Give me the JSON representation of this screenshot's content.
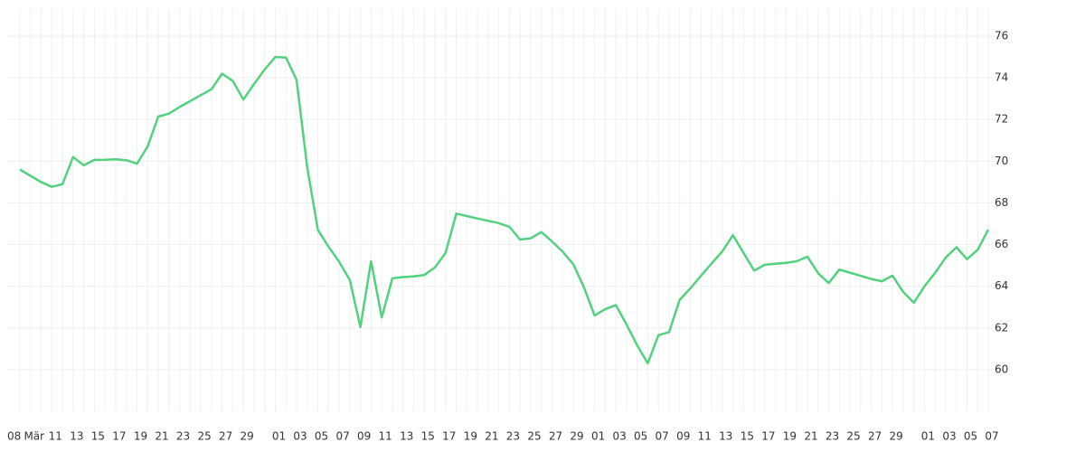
{
  "chart_data": {
    "type": "line",
    "categories": [
      "08",
      "Mär",
      null,
      "11",
      null,
      "13",
      null,
      "15",
      null,
      "17",
      null,
      "19",
      null,
      "21",
      null,
      "23",
      null,
      "25",
      null,
      "27",
      null,
      "29",
      null,
      null,
      "01",
      null,
      "03",
      null,
      "05",
      null,
      "07",
      null,
      "09",
      null,
      "11",
      null,
      "13",
      null,
      "15",
      null,
      "17",
      null,
      "19",
      null,
      "21",
      null,
      "23",
      null,
      "25",
      null,
      "27",
      null,
      "29",
      null,
      "01",
      null,
      "03",
      null,
      "05",
      null,
      "07",
      null,
      "09",
      null,
      "11",
      null,
      "13",
      null,
      "15",
      null,
      "17",
      null,
      "19",
      null,
      "21",
      null,
      "23",
      null,
      "25",
      null,
      "27",
      null,
      "29",
      null,
      null,
      "01",
      null,
      "03",
      null,
      "05",
      null,
      "07"
    ],
    "series": [
      {
        "color": "#52d17e",
        "values": [
          69.6,
          69.3,
          69.0,
          68.77,
          68.9,
          70.2,
          69.8,
          70.06,
          70.07,
          70.09,
          70.05,
          69.88,
          70.7,
          72.14,
          72.28,
          72.6,
          72.88,
          73.17,
          73.45,
          74.2,
          73.85,
          72.96,
          73.7,
          74.4,
          75.0,
          74.97,
          73.9,
          69.7,
          66.7,
          65.9,
          65.17,
          64.3,
          62.04,
          65.2,
          62.5,
          64.38,
          64.44,
          64.47,
          64.54,
          64.9,
          65.6,
          67.48,
          67.37,
          67.25,
          67.14,
          67.03,
          66.85,
          66.24,
          66.3,
          66.6,
          66.15,
          65.66,
          65.06,
          63.95,
          62.6,
          62.9,
          63.1,
          62.17,
          61.17,
          60.3,
          61.65,
          61.8,
          63.35,
          63.9,
          64.5,
          65.09,
          65.67,
          66.45,
          65.6,
          64.75,
          65.03,
          65.08,
          65.12,
          65.2,
          65.42,
          64.63,
          64.15,
          64.8,
          64.65,
          64.5,
          64.35,
          64.24,
          64.51,
          63.73,
          63.21,
          64.0,
          64.64,
          65.38,
          65.87,
          65.3,
          65.75,
          66.72
        ]
      }
    ],
    "ylim": [
      58,
      77.3
    ],
    "yticks": [
      60,
      62,
      64,
      66,
      68,
      70,
      72,
      74,
      76
    ],
    "grid": true
  }
}
